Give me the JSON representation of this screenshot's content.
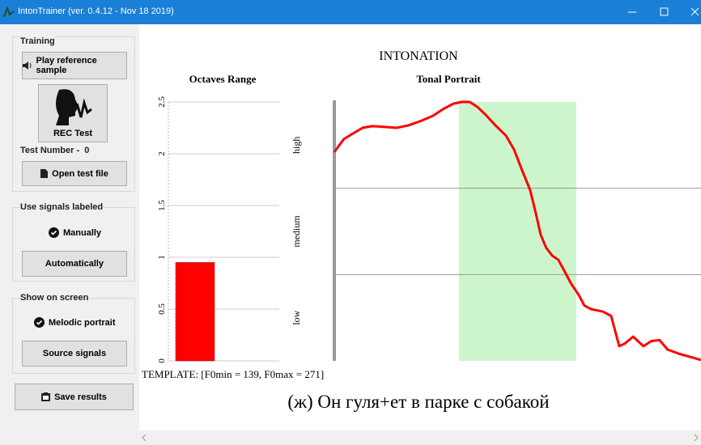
{
  "window": {
    "title": "IntonTrainer (ver. 0.4.12 - Nov 18 2019)"
  },
  "sidebar": {
    "training": "Training",
    "play": "Play reference sample",
    "rec": "REC Test",
    "test_number_label": "Test Number -",
    "test_number": "0",
    "open": "Open test file",
    "signals_heading": "Use signals labeled",
    "manually": "Manually",
    "automatically": "Automatically",
    "show_heading": "Show on screen",
    "melodic": "Melodic portrait",
    "source": "Source signals",
    "save": "Save results"
  },
  "main_title": "INTONATION",
  "chart_data": [
    {
      "type": "bar",
      "title": "Octaves Range",
      "categories": [
        null
      ],
      "values": [
        0.95
      ],
      "color": "#ff0000",
      "ylim": [
        0,
        2.5
      ],
      "yticks": [
        0,
        0.5,
        1,
        1.5,
        2,
        2.5
      ],
      "grid": true
    },
    {
      "type": "line",
      "title": "Tonal Portrait",
      "color": "#ff0000",
      "x": [
        0,
        2.6,
        4.9,
        7.7,
        10.4,
        13.7,
        17.0,
        20.3,
        23.6,
        26.9,
        29.8,
        32.5,
        34.7,
        36.9,
        39.1,
        41.3,
        43.9,
        46.8,
        49.0,
        51.2,
        53.4,
        55.0,
        56.3,
        57.8,
        59.4,
        61.1,
        62.9,
        64.5,
        66.7,
        68.2,
        70.0,
        73.3,
        75.5,
        77.7,
        79.2,
        81.5,
        84.3,
        86.5,
        88.7,
        90.9,
        94.2,
        97.5,
        100
      ],
      "values": [
        2.42,
        2.57,
        2.63,
        2.7,
        2.72,
        2.71,
        2.7,
        2.73,
        2.78,
        2.84,
        2.92,
        2.98,
        3.0,
        3.0,
        2.94,
        2.85,
        2.73,
        2.61,
        2.45,
        2.21,
        1.98,
        1.7,
        1.46,
        1.31,
        1.22,
        1.17,
        1.03,
        0.9,
        0.76,
        0.64,
        0.6,
        0.57,
        0.52,
        0.17,
        0.2,
        0.28,
        0.17,
        0.23,
        0.24,
        0.13,
        0.08,
        0.04,
        0.01
      ],
      "xlim": [
        0,
        100
      ],
      "ylim": [
        0,
        3
      ],
      "yticks": [
        {
          "value": 0.5,
          "label": "low"
        },
        {
          "value": 1.5,
          "label": "medium"
        },
        {
          "value": 2.5,
          "label": "high"
        }
      ],
      "hlines": [
        1,
        2
      ],
      "highlight": [
        34,
        66
      ],
      "highlight_color": "#ccf5cc"
    }
  ],
  "template": "TEMPLATE: [F0min = 139, F0max = 271]",
  "phrase": "(ж) Он гуля+ет в парке с собакой"
}
